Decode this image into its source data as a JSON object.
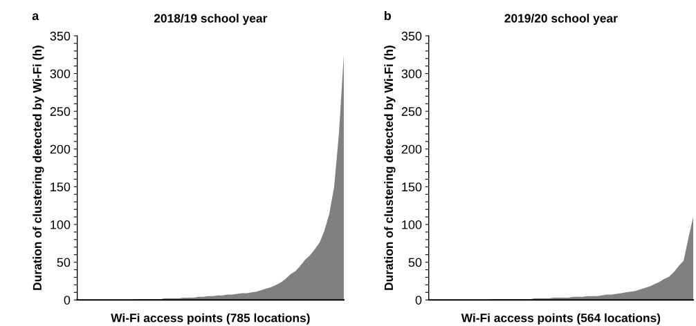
{
  "chart_data": [
    {
      "type": "area",
      "title": "2018/19 school year",
      "xlabel": "Wi-Fi access points (785 locations)",
      "ylabel": "Duration of clustering detected by Wi-Fi (h)",
      "annotations": [
        "a"
      ],
      "categories": [
        null,
        null,
        null,
        null,
        null,
        null,
        null,
        null,
        null,
        null,
        null,
        null,
        null,
        null,
        null,
        null,
        null,
        null,
        null,
        null,
        null,
        null,
        null,
        null,
        null,
        null,
        null,
        null,
        null,
        null,
        null,
        null,
        null,
        null,
        null,
        null,
        null,
        null,
        null,
        null,
        null,
        null,
        null,
        null,
        null,
        null,
        null,
        null,
        null,
        null,
        null,
        null,
        null,
        null,
        null,
        null
      ],
      "series": [
        {
          "color": "#808080",
          "values": [
            0,
            0,
            0,
            0,
            0,
            0,
            0,
            0,
            0,
            0,
            0,
            0,
            1,
            1,
            1,
            1,
            1,
            1,
            2,
            2,
            2,
            2,
            3,
            3,
            3,
            4,
            4,
            5,
            5,
            6,
            6,
            7,
            7,
            8,
            9,
            9,
            10,
            11,
            13,
            15,
            17,
            20,
            23,
            28,
            34,
            38,
            45,
            53,
            59,
            67,
            76,
            92,
            114,
            150,
            221,
            325
          ]
        }
      ],
      "ylim": [
        0,
        350
      ],
      "yticks": [
        0,
        {
          "value": 10,
          "label": null
        },
        {
          "value": 20,
          "label": null
        },
        {
          "value": 30,
          "label": null
        },
        {
          "value": 40,
          "label": null
        },
        50,
        {
          "value": 60,
          "label": null
        },
        {
          "value": 70,
          "label": null
        },
        {
          "value": 80,
          "label": null
        },
        {
          "value": 90,
          "label": null
        },
        100,
        {
          "value": 110,
          "label": null
        },
        {
          "value": 120,
          "label": null
        },
        {
          "value": 130,
          "label": null
        },
        {
          "value": 140,
          "label": null
        },
        150,
        {
          "value": 160,
          "label": null
        },
        {
          "value": 170,
          "label": null
        },
        {
          "value": 180,
          "label": null
        },
        {
          "value": 190,
          "label": null
        },
        200,
        {
          "value": 210,
          "label": null
        },
        {
          "value": 220,
          "label": null
        },
        {
          "value": 230,
          "label": null
        },
        {
          "value": 240,
          "label": null
        },
        250,
        {
          "value": 260,
          "label": null
        },
        {
          "value": 270,
          "label": null
        },
        {
          "value": 280,
          "label": null
        },
        {
          "value": 290,
          "label": null
        },
        300,
        {
          "value": 310,
          "label": null
        },
        {
          "value": 320,
          "label": null
        },
        {
          "value": 330,
          "label": null
        },
        {
          "value": 340,
          "label": null
        },
        350
      ],
      "tick_labels": "y"
    },
    {
      "type": "area",
      "title": "2019/20 school year",
      "xlabel": "Wi-Fi access points (564 locations)",
      "ylabel": "Duration of clustering detected by Wi-Fi (h)",
      "annotations": [
        "b"
      ],
      "categories": [
        null,
        null,
        null,
        null,
        null,
        null,
        null,
        null,
        null,
        null,
        null,
        null,
        null,
        null,
        null,
        null,
        null,
        null,
        null,
        null,
        null,
        null,
        null,
        null,
        null,
        null,
        null,
        null,
        null,
        null,
        null,
        null,
        null,
        null,
        null,
        null,
        null,
        null,
        null,
        null,
        null,
        null,
        null,
        null,
        null,
        null,
        null,
        null,
        null,
        null,
        null,
        null,
        null,
        null,
        null,
        null
      ],
      "series": [
        {
          "color": "#808080",
          "values": [
            0,
            0,
            0,
            0,
            0,
            0,
            0,
            0,
            0,
            0,
            0,
            0,
            0,
            1,
            1,
            1,
            1,
            1,
            1,
            1,
            1,
            1,
            2,
            2,
            2,
            2,
            3,
            3,
            3,
            3,
            4,
            4,
            4,
            5,
            5,
            5,
            6,
            7,
            7,
            8,
            9,
            10,
            11,
            12,
            14,
            16,
            18,
            21,
            24,
            28,
            31,
            37,
            45,
            52,
            82,
            110
          ]
        }
      ],
      "ylim": [
        0,
        350
      ],
      "yticks": [
        0,
        {
          "value": 10,
          "label": null
        },
        {
          "value": 20,
          "label": null
        },
        {
          "value": 30,
          "label": null
        },
        {
          "value": 40,
          "label": null
        },
        50,
        {
          "value": 60,
          "label": null
        },
        {
          "value": 70,
          "label": null
        },
        {
          "value": 80,
          "label": null
        },
        {
          "value": 90,
          "label": null
        },
        100,
        {
          "value": 110,
          "label": null
        },
        {
          "value": 120,
          "label": null
        },
        {
          "value": 130,
          "label": null
        },
        {
          "value": 140,
          "label": null
        },
        150,
        {
          "value": 160,
          "label": null
        },
        {
          "value": 170,
          "label": null
        },
        {
          "value": 180,
          "label": null
        },
        {
          "value": 190,
          "label": null
        },
        200,
        {
          "value": 210,
          "label": null
        },
        {
          "value": 220,
          "label": null
        },
        {
          "value": 230,
          "label": null
        },
        {
          "value": 240,
          "label": null
        },
        250,
        {
          "value": 260,
          "label": null
        },
        {
          "value": 270,
          "label": null
        },
        {
          "value": 280,
          "label": null
        },
        {
          "value": 290,
          "label": null
        },
        300,
        {
          "value": 310,
          "label": null
        },
        {
          "value": 320,
          "label": null
        },
        {
          "value": 330,
          "label": null
        },
        {
          "value": 340,
          "label": null
        },
        350
      ],
      "tick_labels": "y"
    }
  ]
}
